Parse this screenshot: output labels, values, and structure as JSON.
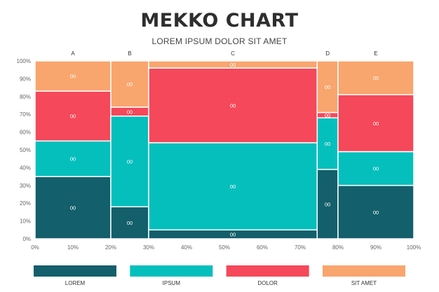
{
  "chart_data": {
    "type": "mekko",
    "title": "MEKKO CHART",
    "subtitle": "LOREM IPSUM DOLOR SIT AMET",
    "x_ticks": [
      "0%",
      "10%",
      "20%",
      "30%",
      "40%",
      "50%",
      "60%",
      "70%",
      "80%",
      "90%",
      "100%"
    ],
    "y_ticks": [
      "0%",
      "10%",
      "20%",
      "30%",
      "40%",
      "50%",
      "60%",
      "70%",
      "80%",
      "90%",
      "100%"
    ],
    "xlim": [
      0,
      100
    ],
    "ylim": [
      0,
      100
    ],
    "columns": [
      {
        "name": "A",
        "start": 0,
        "end": 20,
        "segments": [
          35,
          20,
          28,
          17
        ]
      },
      {
        "name": "B",
        "start": 20,
        "end": 30,
        "segments": [
          18,
          51,
          5,
          26
        ]
      },
      {
        "name": "C",
        "start": 30,
        "end": 74.5,
        "segments": [
          5,
          49,
          42,
          4
        ]
      },
      {
        "name": "D",
        "start": 74.5,
        "end": 80,
        "segments": [
          39,
          29,
          3,
          29
        ]
      },
      {
        "name": "E",
        "start": 80,
        "end": 100,
        "segments": [
          30,
          19,
          32,
          19
        ]
      }
    ],
    "series": [
      {
        "name": "LOREM",
        "color": "#135f6b"
      },
      {
        "name": "IPSUM",
        "color": "#05bfbd"
      },
      {
        "name": "DOLOR",
        "color": "#f5485a"
      },
      {
        "name": "SIT AMET",
        "color": "#f9a56e"
      }
    ],
    "data_label": "00"
  }
}
